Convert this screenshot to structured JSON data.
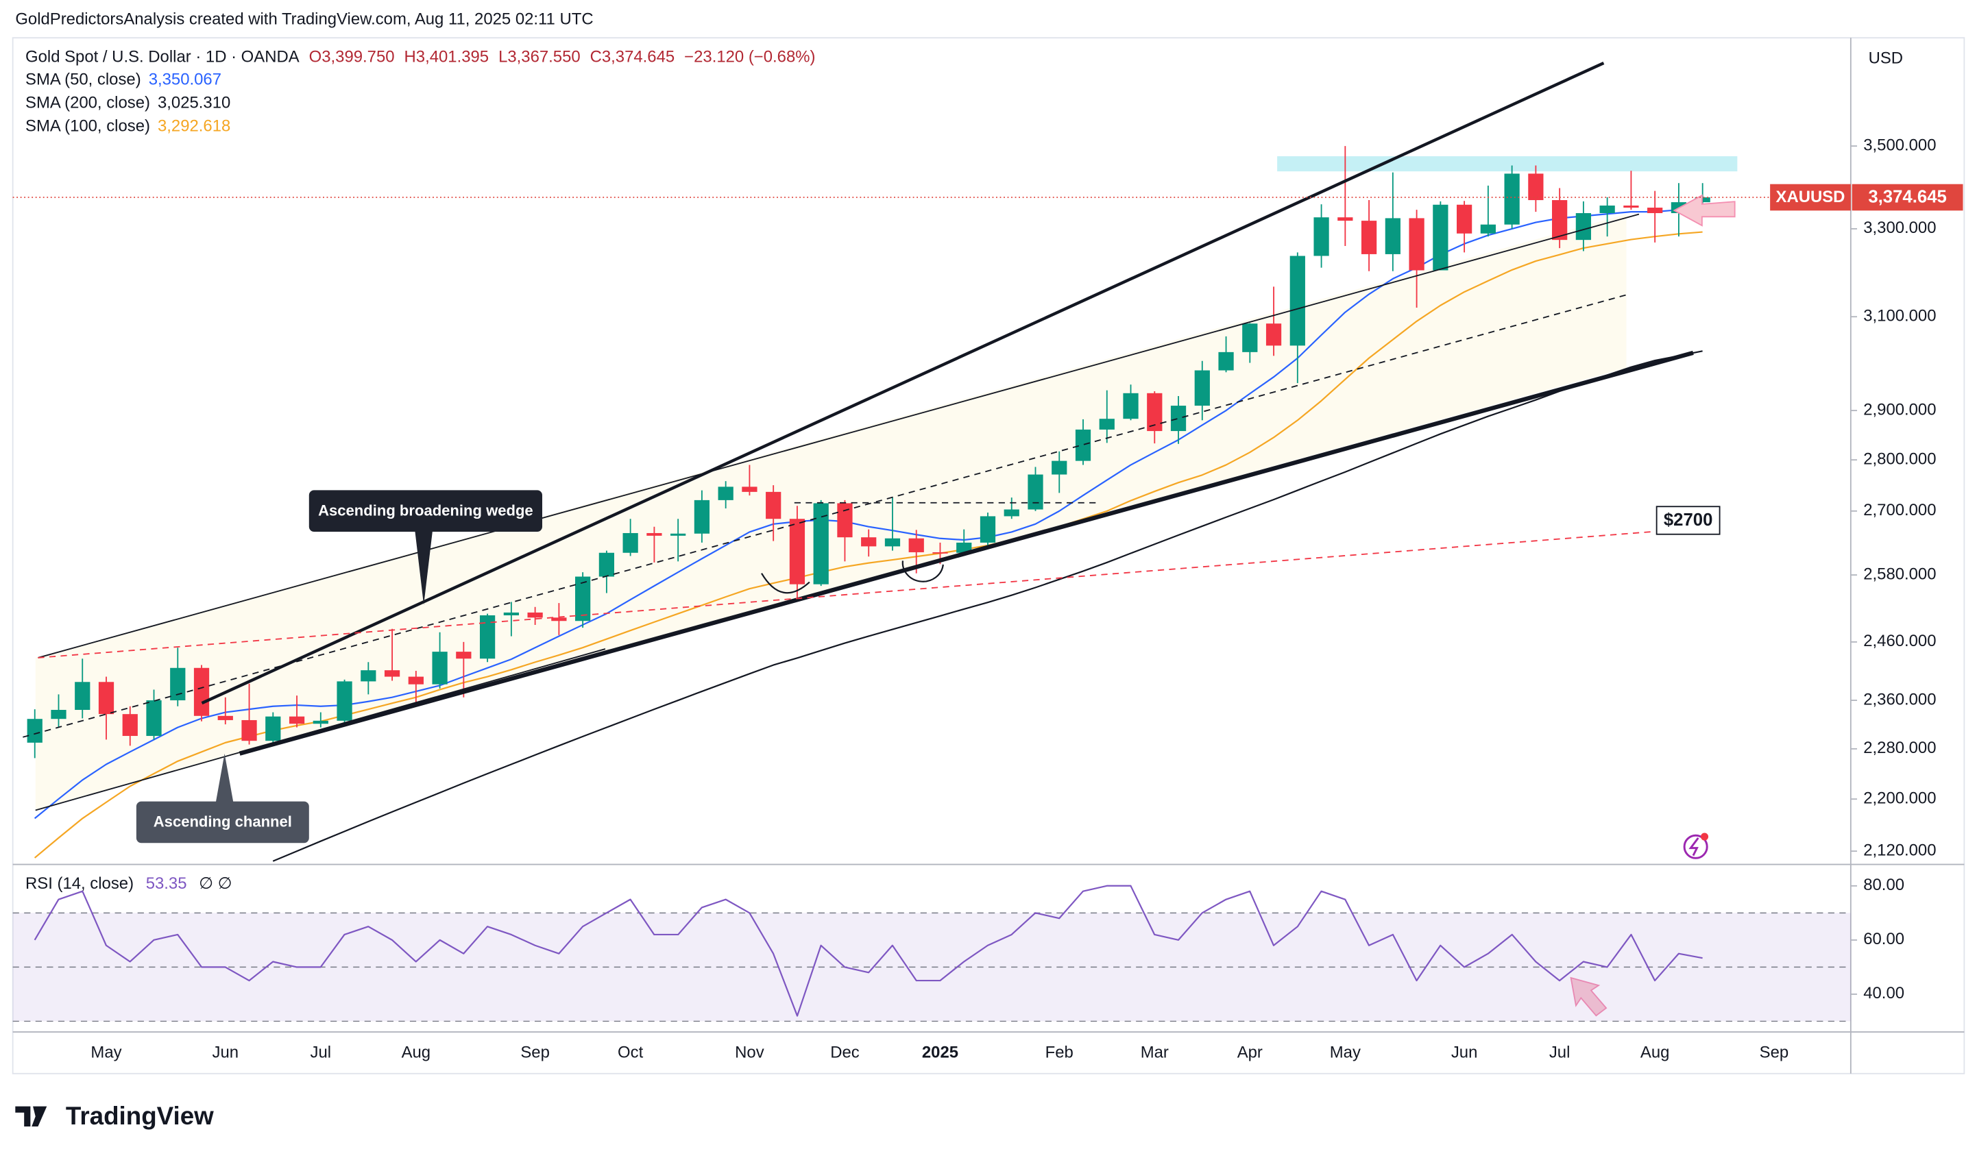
{
  "chart_data": {
    "type": "candlestick",
    "attribution": "GoldPredictorsAnalysis created with TradingView.com, Aug 11, 2025 02:11 UTC",
    "symbol": "Gold Spot / U.S. Dollar · 1D · OANDA",
    "ohlc": [
      "O3,399.750",
      "H3,401.395",
      "L3,367.550",
      "C3,374.645"
    ],
    "change": "−23.120 (−0.68%)",
    "currency": "USD",
    "categories": [
      null,
      null,
      null,
      "May",
      null,
      null,
      null,
      null,
      "Jun",
      null,
      null,
      null,
      "Jul",
      null,
      null,
      null,
      "Aug",
      null,
      null,
      null,
      null,
      "Sep",
      null,
      null,
      null,
      "Oct",
      null,
      null,
      null,
      null,
      "Nov",
      null,
      null,
      null,
      "Dec",
      null,
      null,
      null,
      "2025",
      null,
      null,
      null,
      null,
      "Feb",
      null,
      null,
      null,
      "Mar",
      null,
      null,
      null,
      "Apr",
      null,
      null,
      null,
      "May",
      null,
      null,
      null,
      null,
      "Jun",
      null,
      null,
      null,
      "Jul",
      null,
      null,
      null,
      "Aug",
      null,
      null,
      null,
      null,
      "Sep"
    ],
    "open": [
      2290,
      2329,
      2344,
      2391,
      2337,
      2301,
      2360,
      2415,
      2334,
      2327,
      2293,
      2333,
      2321,
      2326,
      2392,
      2411,
      2400,
      2387,
      2443,
      2431,
      2507,
      2512,
      2503,
      2497,
      2577,
      2621,
      2658,
      2653,
      2657,
      2721,
      2747,
      2737,
      2685,
      2563,
      2715,
      2650,
      2633,
      2648,
      2622,
      2621,
      2640,
      2690,
      2703,
      2771,
      2798,
      2861,
      2883,
      2936,
      2858,
      2910,
      2984,
      3023,
      3085,
      3037,
      3237,
      3327,
      3319,
      3241,
      3325,
      3204,
      3357,
      3289,
      3310,
      3432,
      3368,
      3274,
      3337,
      3355,
      3350,
      3337,
      3363,
      null,
      null,
      null
    ],
    "high": [
      2345,
      2370,
      2431,
      2400,
      2350,
      2378,
      2450,
      2420,
      2365,
      2388,
      2340,
      2368,
      2340,
      2395,
      2425,
      2483,
      2410,
      2477,
      2460,
      2510,
      2531,
      2522,
      2529,
      2585,
      2625,
      2685,
      2670,
      2685,
      2740,
      2758,
      2790,
      2750,
      2710,
      2721,
      2721,
      2665,
      2726,
      2664,
      2640,
      2665,
      2697,
      2726,
      2786,
      2817,
      2882,
      2942,
      2954,
      2940,
      2930,
      3004,
      3057,
      3086,
      3167,
      3245,
      3358,
      3500,
      3368,
      3435,
      3345,
      3365,
      3366,
      3403,
      3452,
      3452,
      3397,
      3365,
      3375,
      3439,
      3390,
      3409,
      3409,
      null,
      null,
      null
    ],
    "low": [
      2265,
      2315,
      2330,
      2295,
      2285,
      2295,
      2350,
      2325,
      2320,
      2287,
      2286,
      2315,
      2315,
      2320,
      2370,
      2393,
      2353,
      2380,
      2365,
      2425,
      2470,
      2490,
      2472,
      2485,
      2547,
      2615,
      2603,
      2605,
      2640,
      2705,
      2730,
      2643,
      2537,
      2560,
      2605,
      2614,
      2625,
      2583,
      2600,
      2615,
      2635,
      2685,
      2700,
      2735,
      2790,
      2834,
      2880,
      2833,
      2832,
      2880,
      2980,
      3000,
      3015,
      2957,
      3210,
      3260,
      3202,
      3202,
      3120,
      3204,
      3245,
      3282,
      3300,
      3340,
      3255,
      3248,
      3282,
      3345,
      3268,
      3282,
      3350,
      null,
      null,
      null
    ],
    "close": [
      2329,
      2344,
      2391,
      2337,
      2301,
      2360,
      2415,
      2334,
      2327,
      2293,
      2333,
      2321,
      2326,
      2392,
      2411,
      2400,
      2387,
      2443,
      2431,
      2507,
      2512,
      2503,
      2497,
      2577,
      2621,
      2658,
      2653,
      2657,
      2721,
      2747,
      2737,
      2685,
      2563,
      2715,
      2650,
      2633,
      2648,
      2622,
      2621,
      2640,
      2690,
      2703,
      2771,
      2798,
      2861,
      2883,
      2936,
      2858,
      2910,
      2984,
      3023,
      3085,
      3037,
      3237,
      3327,
      3319,
      3241,
      3325,
      3204,
      3357,
      3289,
      3310,
      3432,
      3368,
      3274,
      3337,
      3355,
      3350,
      3337,
      3363,
      3374.645,
      null,
      null,
      null
    ],
    "up_color": "#089981",
    "down_color": "#f23645",
    "overlays": [
      {
        "name": "SMA (50, close)",
        "value_label": "3,350.067",
        "color": "#2962ff",
        "values": [
          2170,
          2200,
          2230,
          2255,
          2275,
          2295,
          2315,
          2330,
          2340,
          2345,
          2350,
          2352,
          2350,
          2352,
          2358,
          2365,
          2375,
          2385,
          2400,
          2415,
          2430,
          2450,
          2470,
          2490,
          2510,
          2535,
          2560,
          2585,
          2610,
          2635,
          2660,
          2675,
          2680,
          2683,
          2680,
          2670,
          2663,
          2655,
          2648,
          2645,
          2650,
          2660,
          2675,
          2700,
          2730,
          2760,
          2790,
          2815,
          2840,
          2870,
          2900,
          2935,
          2970,
          3010,
          3060,
          3110,
          3150,
          3185,
          3210,
          3240,
          3265,
          3285,
          3300,
          3315,
          3325,
          3330,
          3335,
          3340,
          3340,
          3345,
          3350.067,
          null,
          null,
          null
        ]
      },
      {
        "name": "SMA (200, close)",
        "value_label": "3,025.310",
        "color": "#131722",
        "values": [
          null,
          null,
          null,
          null,
          null,
          null,
          null,
          null,
          null,
          null,
          2105,
          2120,
          2135,
          2150,
          2165,
          2180,
          2195,
          2210,
          2225,
          2240,
          2255,
          2270,
          2285,
          2300,
          2315,
          2330,
          2345,
          2360,
          2375,
          2390,
          2405,
          2420,
          2432,
          2445,
          2458,
          2470,
          2482,
          2494,
          2506,
          2518,
          2530,
          2543,
          2557,
          2572,
          2587,
          2603,
          2620,
          2637,
          2654,
          2671,
          2688,
          2705,
          2722,
          2740,
          2758,
          2776,
          2795,
          2814,
          2833,
          2852,
          2870,
          2888,
          2905,
          2922,
          2940,
          2957,
          2974,
          2991,
          3005,
          3015,
          3025.31,
          null,
          null,
          null
        ]
      },
      {
        "name": "SMA (100, close)",
        "value_label": "3,292.618",
        "color": "#f5a623",
        "values": [
          2110,
          2140,
          2170,
          2195,
          2220,
          2240,
          2260,
          2275,
          2290,
          2300,
          2310,
          2318,
          2325,
          2335,
          2345,
          2355,
          2365,
          2378,
          2390,
          2400,
          2412,
          2425,
          2437,
          2450,
          2465,
          2480,
          2495,
          2510,
          2525,
          2540,
          2555,
          2565,
          2575,
          2585,
          2595,
          2602,
          2608,
          2614,
          2620,
          2627,
          2635,
          2645,
          2657,
          2670,
          2685,
          2700,
          2720,
          2738,
          2755,
          2770,
          2790,
          2815,
          2845,
          2880,
          2920,
          2965,
          3010,
          3050,
          3090,
          3125,
          3155,
          3180,
          3205,
          3225,
          3240,
          3255,
          3265,
          3275,
          3282,
          3288,
          3292.618,
          null,
          null,
          null
        ]
      }
    ],
    "log_scale": true,
    "ylim": [
      2102,
      3780
    ],
    "yticks": [
      {
        "value": 3500,
        "label": "3,500.000"
      },
      {
        "value": 3300,
        "label": "3,300.000"
      },
      {
        "value": 3100,
        "label": "3,100.000"
      },
      {
        "value": 2900,
        "label": "2,900.000"
      },
      {
        "value": 2800,
        "label": "2,800.000"
      },
      {
        "value": 2700,
        "label": "2,700.000"
      },
      {
        "value": 2580,
        "label": "2,580.000"
      },
      {
        "value": 2460,
        "label": "2,460.000"
      },
      {
        "value": 2360,
        "label": "2,360.000"
      },
      {
        "value": 2280,
        "label": "2,280.000"
      },
      {
        "value": 2200,
        "label": "2,200.000"
      },
      {
        "value": 2120,
        "label": "2,120.000"
      }
    ],
    "last_price_name": "XAUUSD",
    "last_price_label": "3,374.645",
    "last_price_color": "#e0463e",
    "annotations": [
      "Ascending broadening wedge",
      "Ascending channel",
      "$2700"
    ],
    "rsi": {
      "name": "RSI (14, close)",
      "value_label": "53.35",
      "extra": "∅ ∅",
      "color": "#7e57c2",
      "values": [
        60,
        75,
        78,
        58,
        52,
        60,
        62,
        50,
        50,
        45,
        52,
        50,
        50,
        62,
        65,
        60,
        52,
        60,
        55,
        65,
        62,
        58,
        55,
        65,
        70,
        75,
        62,
        62,
        72,
        75,
        70,
        55,
        32,
        58,
        50,
        48,
        58,
        45,
        45,
        52,
        58,
        62,
        70,
        68,
        78,
        80,
        80,
        62,
        60,
        70,
        75,
        78,
        58,
        65,
        78,
        75,
        58,
        62,
        45,
        58,
        50,
        55,
        62,
        52,
        45,
        52,
        50,
        62,
        45,
        55,
        53.35,
        null,
        null,
        null
      ],
      "ylim": [
        26.5,
        87
      ],
      "yticks": [
        {
          "value": 80,
          "label": "80.00"
        },
        {
          "value": 60,
          "label": "60.00"
        },
        {
          "value": 40,
          "label": "40.00"
        }
      ],
      "levels": [
        70,
        50,
        30
      ]
    },
    "brand": "TradingView"
  }
}
